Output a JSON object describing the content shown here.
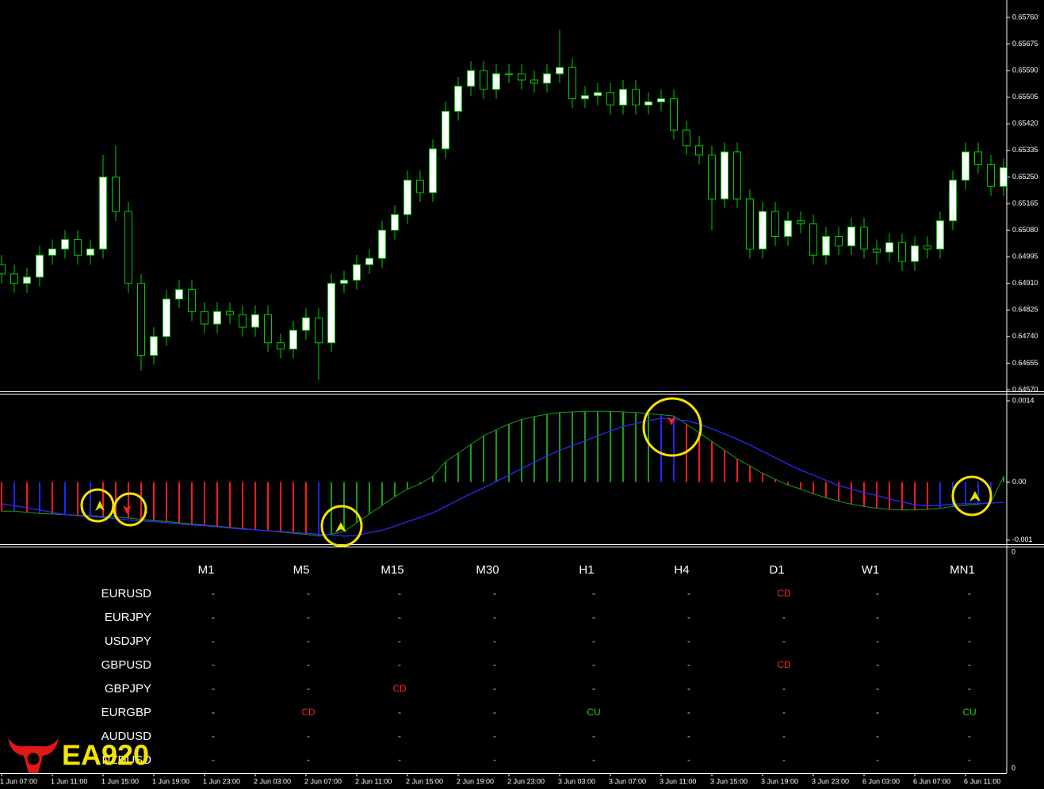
{
  "chart_data": [
    {
      "type": "candlestick",
      "categories": [
        "1 Jun 07:00",
        null,
        null,
        null,
        "1 Jun 11:00",
        null,
        null,
        null,
        "1 Jun 15:00",
        null,
        null,
        null,
        "1 Jun 19:00",
        null,
        null,
        null,
        "1 Jun 23:00",
        null,
        null,
        null,
        "2 Jun 03:00",
        null,
        null,
        null,
        "2 Jun 07:00",
        null,
        null,
        null,
        "2 Jun 11:00",
        null,
        null,
        null,
        "2 Jun 15:00",
        null,
        null,
        null,
        "2 Jun 19:00",
        null,
        null,
        null,
        "2 Jun 23:00",
        null,
        null,
        null,
        "3 Jun 03:00",
        null,
        null,
        null,
        "3 Jun 07:00",
        null,
        null,
        null,
        "3 Jun 11:00",
        null,
        null,
        null,
        "3 Jun 15:00",
        null,
        null,
        null,
        "3 Jun 19:00",
        null,
        null,
        null,
        "3 Jun 23:00",
        null,
        null,
        null,
        "6 Jun 03:00",
        null,
        null,
        null,
        "6 Jun 07:00",
        null,
        null,
        null,
        "6 Jun 11:00",
        null,
        null,
        null
      ],
      "open": [
        0.6497,
        0.6494,
        0.6491,
        0.6493,
        0.65,
        0.6502,
        0.6505,
        0.65,
        0.6502,
        0.6525,
        0.6514,
        0.6491,
        0.6468,
        0.6474,
        0.6486,
        0.6489,
        0.6482,
        0.6478,
        0.6482,
        0.6481,
        0.6477,
        0.6481,
        0.6472,
        0.647,
        0.6476,
        0.648,
        0.6472,
        0.6491,
        0.6492,
        0.6497,
        0.6499,
        0.6508,
        0.6513,
        0.6524,
        0.652,
        0.6534,
        0.6546,
        0.6554,
        0.6559,
        0.6553,
        0.6558,
        0.6558,
        0.6556,
        0.6555,
        0.6558,
        0.656,
        0.655,
        0.6551,
        0.6552,
        0.6548,
        0.6553,
        0.6548,
        0.6549,
        0.655,
        0.654,
        0.6535,
        0.6532,
        0.6518,
        0.6533,
        0.6518,
        0.6502,
        0.6514,
        0.6506,
        0.6511,
        0.651,
        0.65,
        0.6506,
        0.6503,
        0.6509,
        0.6502,
        0.6501,
        0.6504,
        0.6498,
        0.6503,
        0.6502,
        0.6511,
        0.6524,
        0.6533,
        0.6529,
        0.6522
      ],
      "high": [
        0.65,
        0.6497,
        0.6496,
        0.6503,
        0.6505,
        0.6508,
        0.6508,
        0.6505,
        0.6532,
        0.6535,
        0.6517,
        0.6494,
        0.6477,
        0.6489,
        0.6492,
        0.6492,
        0.6485,
        0.6485,
        0.6485,
        0.6484,
        0.6484,
        0.6484,
        0.6475,
        0.6479,
        0.6483,
        0.6483,
        0.6494,
        0.6495,
        0.65,
        0.6502,
        0.6511,
        0.6516,
        0.6527,
        0.6527,
        0.6537,
        0.6549,
        0.6557,
        0.6562,
        0.6562,
        0.6561,
        0.6561,
        0.6561,
        0.6559,
        0.6561,
        0.6572,
        0.6563,
        0.6554,
        0.6555,
        0.6555,
        0.6556,
        0.6556,
        0.6552,
        0.6553,
        0.6553,
        0.6543,
        0.6538,
        0.6535,
        0.6536,
        0.6536,
        0.6521,
        0.6517,
        0.6517,
        0.6514,
        0.6514,
        0.6513,
        0.6509,
        0.6509,
        0.6512,
        0.6512,
        0.6505,
        0.6507,
        0.6507,
        0.6506,
        0.6506,
        0.6514,
        0.6527,
        0.6536,
        0.6536,
        0.6532,
        0.6531
      ],
      "low": [
        0.6491,
        0.6488,
        0.6488,
        0.649,
        0.6497,
        0.6499,
        0.6497,
        0.6497,
        0.6499,
        0.6511,
        0.6488,
        0.6463,
        0.6465,
        0.6471,
        0.6483,
        0.6479,
        0.6475,
        0.6475,
        0.6478,
        0.6474,
        0.6474,
        0.6469,
        0.6467,
        0.6467,
        0.6473,
        0.646,
        0.6469,
        0.6488,
        0.6489,
        0.6494,
        0.6496,
        0.6505,
        0.651,
        0.6517,
        0.6517,
        0.6531,
        0.6543,
        0.6551,
        0.655,
        0.655,
        0.6555,
        0.6553,
        0.6552,
        0.6552,
        0.6555,
        0.6547,
        0.6547,
        0.6548,
        0.6545,
        0.6545,
        0.6545,
        0.6545,
        0.6546,
        0.6537,
        0.6532,
        0.6529,
        0.6508,
        0.6515,
        0.6515,
        0.6499,
        0.6499,
        0.6503,
        0.6503,
        0.6507,
        0.6497,
        0.6497,
        0.65,
        0.65,
        0.6499,
        0.6497,
        0.6498,
        0.6495,
        0.6495,
        0.6499,
        0.6499,
        0.6508,
        0.6521,
        0.6526,
        0.6519,
        0.6519
      ],
      "close": [
        0.6494,
        0.6491,
        0.6493,
        0.65,
        0.6502,
        0.6505,
        0.65,
        0.6502,
        0.6525,
        0.6514,
        0.6491,
        0.6468,
        0.6474,
        0.6486,
        0.6489,
        0.6482,
        0.6478,
        0.6482,
        0.6481,
        0.6477,
        0.6481,
        0.6472,
        0.647,
        0.6476,
        0.648,
        0.6472,
        0.6491,
        0.6492,
        0.6497,
        0.6499,
        0.6508,
        0.6513,
        0.6524,
        0.652,
        0.6534,
        0.6546,
        0.6554,
        0.6559,
        0.6553,
        0.6558,
        0.6558,
        0.6556,
        0.6555,
        0.6558,
        0.656,
        0.655,
        0.6551,
        0.6552,
        0.6548,
        0.6553,
        0.6548,
        0.6549,
        0.655,
        0.654,
        0.6535,
        0.6532,
        0.6518,
        0.6533,
        0.6518,
        0.6502,
        0.6514,
        0.6506,
        0.6511,
        0.651,
        0.65,
        0.6506,
        0.6503,
        0.6509,
        0.6502,
        0.6501,
        0.6504,
        0.6498,
        0.6503,
        0.6502,
        0.6511,
        0.6524,
        0.6533,
        0.6529,
        0.6522,
        0.6528
      ],
      "color": "#00cc00",
      "body_color": "#ffffff",
      "ylim": [
        0.6457,
        0.6576
      ],
      "yticks": [
        {
          "value": 0.6576,
          "label": "0.65760"
        },
        {
          "value": 0.65675,
          "label": "0.65675"
        },
        {
          "value": 0.6559,
          "label": "0.65590"
        },
        {
          "value": 0.65505,
          "label": "0.65505"
        },
        {
          "value": 0.6542,
          "label": "0.65420"
        },
        {
          "value": 0.65335,
          "label": "0.65335"
        },
        {
          "value": 0.6525,
          "label": "0.65250"
        },
        {
          "value": 0.65165,
          "label": "0.65165"
        },
        {
          "value": 0.6508,
          "label": "0.65080"
        },
        {
          "value": 0.64995,
          "label": "0.64995"
        },
        {
          "value": 0.6491,
          "label": "0.64910"
        },
        {
          "value": 0.64825,
          "label": "0.64825"
        },
        {
          "value": 0.6474,
          "label": "0.64740"
        },
        {
          "value": 0.64655,
          "label": "0.64655"
        },
        {
          "value": 0.6457,
          "label": "0.64570"
        }
      ]
    },
    {
      "type": "bar",
      "values": [
        -0.0005,
        -0.0005,
        -0.00052,
        -0.00054,
        -0.00055,
        -0.00056,
        -0.00057,
        -0.00058,
        -0.00059,
        -0.0006,
        -0.00062,
        -0.00064,
        -0.00066,
        -0.00068,
        -0.0007,
        -0.00072,
        -0.00074,
        -0.00076,
        -0.00078,
        -0.0008,
        -0.00082,
        -0.00084,
        -0.00086,
        -0.00088,
        -0.0009,
        -0.00093,
        -0.0009,
        -0.00085,
        -0.0007,
        -0.00055,
        -0.0004,
        -0.00025,
        -0.00012,
        -3e-05,
        0.0001,
        0.00035,
        0.0005,
        0.00065,
        0.0008,
        0.0009,
        0.001,
        0.00108,
        0.00113,
        0.00117,
        0.0012,
        0.00121,
        0.00122,
        0.00122,
        0.00122,
        0.00121,
        0.0012,
        0.00118,
        0.00116,
        0.00114,
        0.001,
        0.00085,
        0.0007,
        0.00055,
        0.0004,
        0.00028,
        0.00015,
        5e-05,
        -5e-05,
        -0.00012,
        -0.0002,
        -0.00027,
        -0.00033,
        -0.00038,
        -0.00042,
        -0.00045,
        -0.00047,
        -0.00048,
        -0.00048,
        -0.00047,
        -0.00045,
        -0.00042,
        -0.0004,
        -0.00038,
        -0.00035,
        0.0001
      ],
      "colors": [
        "#ff1a1a",
        "#2222ff",
        "#ff1a1a",
        "#2222ff",
        "#ff1a1a",
        "#2222ff",
        "#ff1a1a",
        "#2222ff",
        "#ff1a1a",
        "#ff1a1a",
        "#ff1a1a",
        "#ff1a1a",
        "#ff1a1a",
        "#ff1a1a",
        "#ff1a1a",
        "#ff1a1a",
        "#ff1a1a",
        "#ff1a1a",
        "#ff1a1a",
        "#ff1a1a",
        "#ff1a1a",
        "#ff1a1a",
        "#ff1a1a",
        "#ff1a1a",
        "#ff1a1a",
        "#2222ff",
        "#1a9a1a",
        "#1a9a1a",
        "#1a9a1a",
        "#1a9a1a",
        "#1a9a1a",
        "#1a9a1a",
        "#1a9a1a",
        "#1a9a1a",
        "#1a9a1a",
        "#1a9a1a",
        "#1a9a1a",
        "#1a9a1a",
        "#1a9a1a",
        "#1a9a1a",
        "#1a9a1a",
        "#1a9a1a",
        "#1a9a1a",
        "#1a9a1a",
        "#1a9a1a",
        "#1a9a1a",
        "#1a9a1a",
        "#1a9a1a",
        "#1a9a1a",
        "#1a9a1a",
        "#1a9a1a",
        "#1a9a1a",
        "#2222ff",
        "#2222ff",
        "#ff1a1a",
        "#ff1a1a",
        "#ff1a1a",
        "#ff1a1a",
        "#ff1a1a",
        "#ff1a1a",
        "#ff1a1a",
        "#ff1a1a",
        "#ff1a1a",
        "#ff1a1a",
        "#ff1a1a",
        "#ff1a1a",
        "#ff1a1a",
        "#ff1a1a",
        "#ff1a1a",
        "#ff1a1a",
        "#ff1a1a",
        "#ff1a1a",
        "#ff1a1a",
        "#ff1a1a",
        "#2222ff",
        "#2222ff",
        "#2222ff",
        "#2222ff",
        "#2222ff",
        "#1a9a1a"
      ],
      "signal_color": "#1a9a1a",
      "lines": [
        {
          "color": "#2a2aff",
          "values": [
            -0.00037,
            -0.00041,
            -0.00044,
            -0.00048,
            -0.00052,
            -0.00056,
            -0.00058,
            -0.00059,
            -0.00061,
            -0.00063,
            -0.00065,
            -0.00067,
            -0.00068,
            -0.0007,
            -0.00072,
            -0.00074,
            -0.00075,
            -0.00077,
            -0.00079,
            -0.00081,
            -0.00082,
            -0.00084,
            -0.00085,
            -0.00087,
            -0.00088,
            -0.0009,
            -0.00091,
            -0.00093,
            -0.00092,
            -0.00087,
            -0.00083,
            -0.00076,
            -0.00068,
            -0.00061,
            -0.00053,
            -0.00042,
            -0.00031,
            -0.0002,
            -0.0001,
            1e-05,
            0.00012,
            0.00023,
            0.00034,
            0.00045,
            0.00055,
            0.00063,
            0.00071,
            0.0008,
            0.00088,
            0.00096,
            0.00101,
            0.00106,
            0.0011,
            0.00108,
            0.00106,
            0.001,
            0.00092,
            0.00083,
            0.00074,
            0.00064,
            0.00053,
            0.00042,
            0.00031,
            0.00021,
            0.00012,
            3e-05,
            -6e-05,
            -0.00012,
            -0.00018,
            -0.00023,
            -0.00029,
            -0.00034,
            -0.00039,
            -0.00041,
            -0.0004,
            -0.00038,
            -0.00037,
            -0.00037,
            -0.00036,
            -0.00035
          ]
        }
      ],
      "ylim": [
        -0.00107,
        0.00151
      ],
      "yticks": [
        0.0014,
        {
          "value": 0,
          "label": "0.00"
        },
        -0.001
      ]
    }
  ],
  "table_pane_ticks": [
    "0",
    "0"
  ],
  "table": {
    "columns": [
      "M1",
      "M5",
      "M15",
      "M30",
      "H1",
      "H4",
      "D1",
      "W1",
      "MN1"
    ],
    "rows": [
      {
        "symbol": "EURUSD",
        "cells": [
          "-",
          "-",
          "-",
          "-",
          "-",
          "-",
          "CD",
          "-",
          "-"
        ]
      },
      {
        "symbol": "EURJPY",
        "cells": [
          "-",
          "-",
          "-",
          "-",
          "-",
          "-",
          "-",
          "-",
          "-"
        ]
      },
      {
        "symbol": "USDJPY",
        "cells": [
          "-",
          "-",
          "-",
          "-",
          "-",
          "-",
          "-",
          "-",
          "-"
        ]
      },
      {
        "symbol": "GBPUSD",
        "cells": [
          "-",
          "-",
          "-",
          "-",
          "-",
          "-",
          "CD",
          "-",
          "-"
        ]
      },
      {
        "symbol": "GBPJPY",
        "cells": [
          "-",
          "-",
          "CD",
          "-",
          "-",
          "-",
          "-",
          "-",
          "-"
        ]
      },
      {
        "symbol": "EURGBP",
        "cells": [
          "-",
          "CD",
          "-",
          "-",
          "CU",
          "-",
          "-",
          "-",
          "CU"
        ]
      },
      {
        "symbol": "AUDUSD",
        "cells": [
          "-",
          "-",
          "-",
          "-",
          "-",
          "-",
          "-",
          "-",
          "-"
        ]
      },
      {
        "symbol": "NZDUSD",
        "cells": [
          "-",
          "-",
          "-",
          "-",
          "-",
          "-",
          "-",
          "-",
          "-"
        ]
      }
    ],
    "signal_colors": {
      "-": "#cccccc",
      "CD": "#ff2020",
      "CU": "#22cc22"
    }
  },
  "logo": {
    "text": "EA920"
  }
}
